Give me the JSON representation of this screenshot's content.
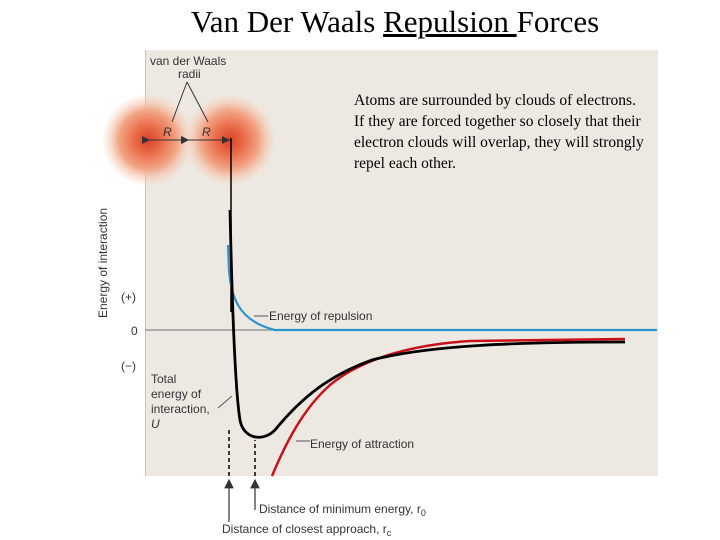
{
  "slide": {
    "title_part1": "Van Der Waals ",
    "title_underlined": "Repulsion ",
    "title_part2": "Forces",
    "note": "Atoms are surrounded by clouds of electrons. If they are forced together so closely that their electron clouds will overlap, they will strongly repel each other."
  },
  "diagram": {
    "vdw_label_1": "van der Waals",
    "vdw_label_2": "radii",
    "r_left": "R",
    "r_right": "R",
    "y_axis_label": "Energy of interaction",
    "tick_plus": "(+)",
    "tick_zero": "0",
    "tick_minus": "(−)",
    "total_label_1": "Total",
    "total_label_2": "energy of",
    "total_label_3": "interaction,",
    "total_label_4": "U",
    "repulsion_label": "Energy of repulsion",
    "attraction_label": "Energy of attraction",
    "min_energy_label": "Distance of minimum energy, r",
    "min_energy_sub": "0",
    "closest_label": "Distance of closest approach, r",
    "closest_sub": "c",
    "colors": {
      "repulsion": "#2a94cc",
      "attraction": "#c8101a",
      "total": "#000000",
      "atom_cloud": "#e8603c",
      "panel": "#ede9e2"
    }
  }
}
